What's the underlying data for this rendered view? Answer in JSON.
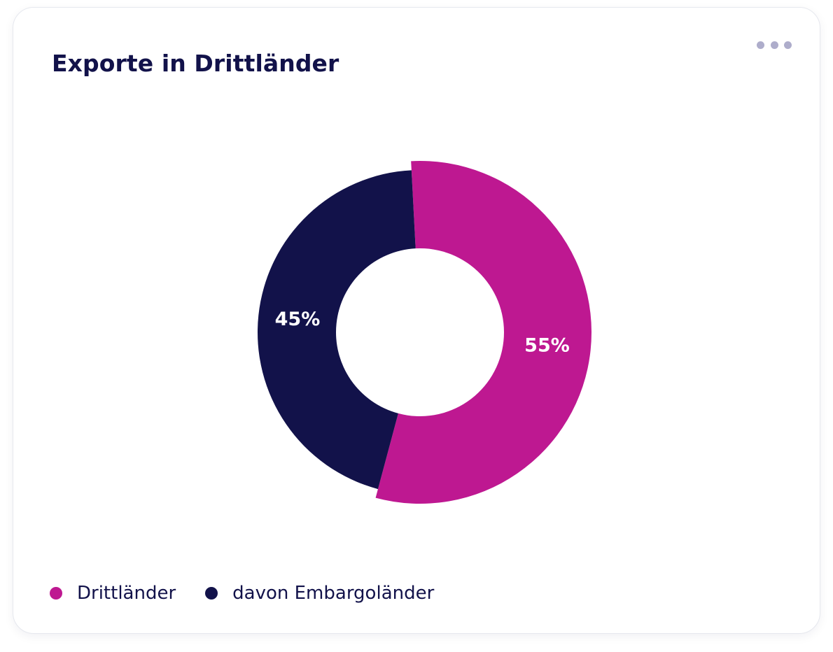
{
  "card": {
    "title": "Exporte in Drittländer",
    "menu_icon": "more-horizontal-icon"
  },
  "colors": {
    "title": "#12124a",
    "menu_dots": "#aeadcb"
  },
  "chart_data": {
    "type": "pie",
    "variant": "donut",
    "title": "Exporte in Drittländer",
    "series": [
      {
        "name": "Drittländer",
        "value": 55,
        "label": "55%",
        "color": "#be1891",
        "emphasized": true
      },
      {
        "name": "davon Embargoländer",
        "value": 45,
        "label": "45%",
        "color": "#12124a",
        "emphasized": false
      }
    ],
    "legend": {
      "position": "bottom-left",
      "entries": [
        "Drittländer",
        "davon Embargoländer"
      ]
    }
  }
}
